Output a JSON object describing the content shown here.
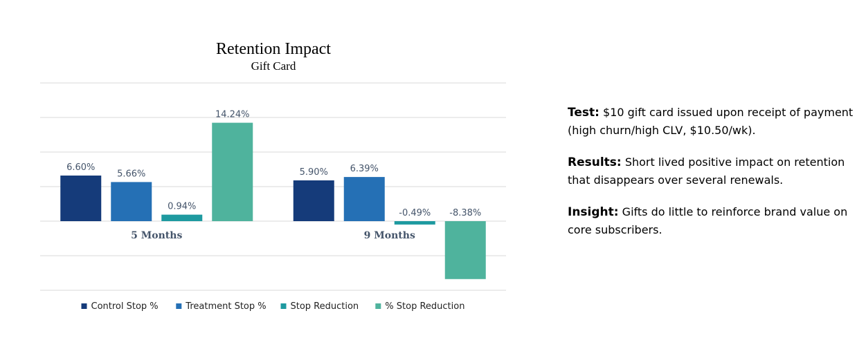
{
  "chart_data": {
    "type": "bar",
    "title": "Retention Impact",
    "subtitle": "Gift Card",
    "categories": [
      "5 Months",
      "9 Months"
    ],
    "series": [
      {
        "name": "Control Stop %",
        "color": "#153b7a",
        "values": [
          6.6,
          5.9
        ],
        "labels": [
          "6.60%",
          "5.90%"
        ]
      },
      {
        "name": "Treatment Stop %",
        "color": "#2570b5",
        "values": [
          5.66,
          6.39
        ],
        "labels": [
          "5.66%",
          "6.39%"
        ]
      },
      {
        "name": "Stop Reduction",
        "color": "#1e9aa0",
        "values": [
          0.94,
          -0.49
        ],
        "labels": [
          "0.94%",
          "-0.49%"
        ]
      },
      {
        "name": "% Stop Reduction",
        "color": "#4fb39d",
        "values": [
          14.24,
          -8.38
        ],
        "labels": [
          "14.24%",
          "-8.38%"
        ]
      }
    ],
    "ylim": [
      -10,
      20
    ],
    "grid": true,
    "legend_position": "bottom"
  },
  "notes": [
    {
      "key": "Test:",
      "text": "$10 gift card issued upon receipt of payment (high churn/high CLV, $10.50/wk)."
    },
    {
      "key": "Results:",
      "text": "Short lived positive impact on retention that disappears over several renewals."
    },
    {
      "key": "Insight:",
      "text": "Gifts do little to reinforce brand value on core subscribers."
    }
  ]
}
